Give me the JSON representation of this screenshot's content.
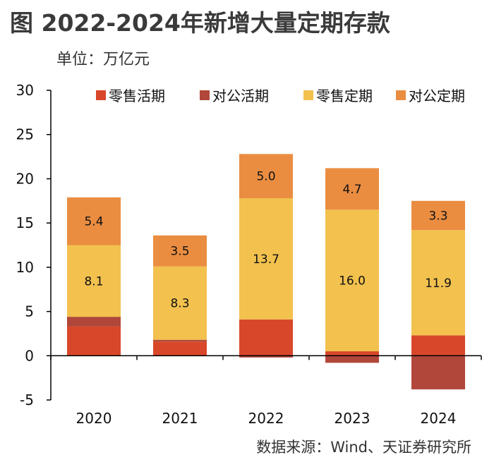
{
  "header": {
    "title": "图  2022-2024年新增大量定期存款",
    "unit": "单位：万亿元"
  },
  "source": "数据来源：Wind、天证券研究所",
  "chart_data": {
    "type": "bar",
    "stacked": true,
    "title": "2022-2024年新增大量定期存款",
    "ylabel": "万亿元",
    "xlabel": "",
    "ylim": [
      -5,
      30
    ],
    "yticks": [
      30,
      25,
      20,
      15,
      10,
      5,
      0,
      -5
    ],
    "categories": [
      "2020",
      "2021",
      "2022",
      "2023",
      "2024"
    ],
    "legend_position": "top-right",
    "series": [
      {
        "name": "零售活期",
        "color": "#D9472B",
        "values": [
          3.3,
          1.6,
          4.1,
          0.5,
          2.3
        ]
      },
      {
        "name": "对公活期",
        "color": "#B1473A",
        "values": [
          1.1,
          0.2,
          -0.2,
          -0.8,
          -3.8
        ]
      },
      {
        "name": "零售定期",
        "color": "#F2C14E",
        "values": [
          8.1,
          8.3,
          13.7,
          16.0,
          11.9
        ]
      },
      {
        "name": "对公定期",
        "color": "#EA8D41",
        "values": [
          5.4,
          3.5,
          5.0,
          4.7,
          3.3
        ]
      }
    ],
    "data_labels": {
      "零售定期": [
        "8.1",
        "8.3",
        "13.7",
        "16.0",
        "11.9"
      ],
      "对公定期": [
        "5.4",
        "3.5",
        "5.0",
        "4.7",
        "3.3"
      ]
    }
  }
}
